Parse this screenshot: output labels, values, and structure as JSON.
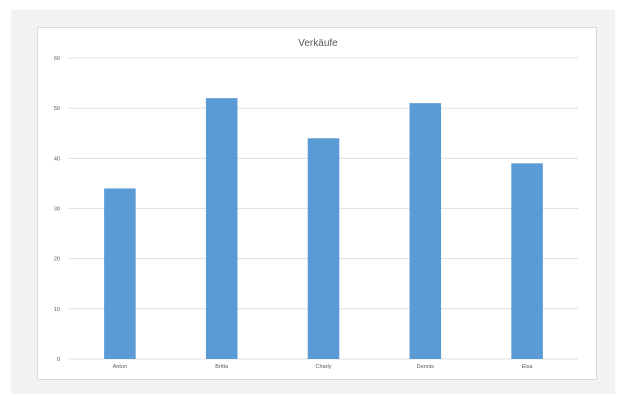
{
  "chart_data": {
    "type": "bar",
    "title": "Verkäufe",
    "categories": [
      "Anton",
      "Britta",
      "Charly",
      "Dennis",
      "Elsa"
    ],
    "values": [
      34,
      52,
      44,
      51,
      39
    ],
    "ylim": [
      0,
      60
    ],
    "yticks": [
      0,
      10,
      20,
      30,
      40,
      50,
      60
    ],
    "grid": true,
    "legend": false,
    "colors": {
      "bar": "#5b9bd5",
      "grid": "#d9d9d9",
      "text": "#595959",
      "background": "#ffffff",
      "outer_background": "#f2f2f2"
    }
  }
}
